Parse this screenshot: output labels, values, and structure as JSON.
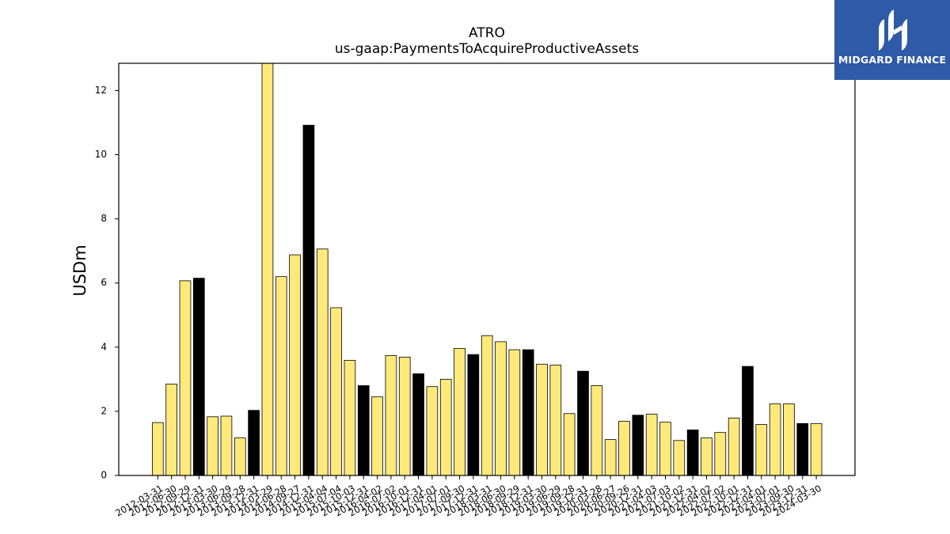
{
  "chart_data": {
    "type": "bar",
    "title": "ATRO",
    "subtitle": "us-gaap:PaymentsToAcquireProductiveAssets",
    "xlabel": "",
    "ylabel": "USDm",
    "ylim": [
      0,
      12.85
    ],
    "yticks": [
      0,
      2,
      4,
      6,
      8,
      10,
      12
    ],
    "grid": false,
    "colors": {
      "quarter": "#ffe97a",
      "fiscal_year_end": "#000000",
      "edge": "#000000"
    },
    "categories": [
      "2012-03-31",
      "2012-06-30",
      "2012-09-29",
      "2012-12-31",
      "2013-03-30",
      "2013-06-29",
      "2013-09-28",
      "2013-12-31",
      "2014-03-29",
      "2014-06-28",
      "2014-09-27",
      "2014-12-31",
      "2015-04-04",
      "2015-07-04",
      "2015-10-03",
      "2015-12-31",
      "2016-04-02",
      "2016-07-02",
      "2016-10-01",
      "2016-12-31",
      "2017-04-01",
      "2017-07-01",
      "2017-09-30",
      "2017-12-31",
      "2018-03-31",
      "2018-06-30",
      "2018-09-29",
      "2018-12-31",
      "2019-03-30",
      "2019-06-29",
      "2019-09-28",
      "2019-12-31",
      "2020-03-28",
      "2020-06-27",
      "2020-09-26",
      "2020-12-31",
      "2021-04-03",
      "2021-07-03",
      "2021-10-02",
      "2021-12-31",
      "2022-04-02",
      "2022-07-02",
      "2022-10-01",
      "2022-12-31",
      "2023-04-01",
      "2023-07-01",
      "2023-09-30",
      "2023-12-31",
      "2024-03-30"
    ],
    "values": [
      1.65,
      2.85,
      6.07,
      6.15,
      1.83,
      1.85,
      1.17,
      2.03,
      12.85,
      6.2,
      6.88,
      10.92,
      7.06,
      5.23,
      3.59,
      2.8,
      2.45,
      3.74,
      3.69,
      3.17,
      2.77,
      3.0,
      3.96,
      3.77,
      4.36,
      4.17,
      3.92,
      3.92,
      3.47,
      3.44,
      1.93,
      3.25,
      2.8,
      1.12,
      1.69,
      1.88,
      1.91,
      1.66,
      1.09,
      1.42,
      1.17,
      1.34,
      1.79,
      3.4,
      1.59,
      2.23,
      2.23,
      1.62,
      1.62
    ],
    "highlight": [
      false,
      false,
      false,
      true,
      false,
      false,
      false,
      true,
      false,
      false,
      false,
      true,
      false,
      false,
      false,
      true,
      false,
      false,
      false,
      true,
      false,
      false,
      false,
      true,
      false,
      false,
      false,
      true,
      false,
      false,
      false,
      true,
      false,
      false,
      false,
      true,
      false,
      false,
      false,
      true,
      false,
      false,
      false,
      true,
      false,
      false,
      false,
      true,
      false
    ]
  },
  "logo": {
    "name": "MIDGARD FINANCE"
  }
}
